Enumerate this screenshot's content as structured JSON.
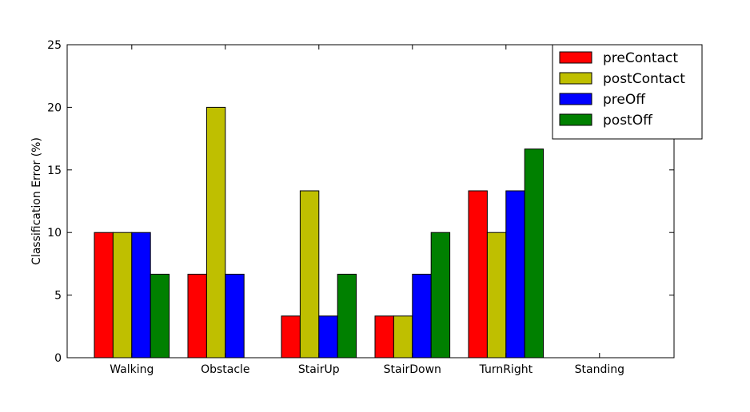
{
  "chart_data": {
    "type": "bar",
    "title": "",
    "xlabel": "",
    "ylabel": "Classification Error (%)",
    "ylim": [
      0,
      25
    ],
    "yticks": [
      "0",
      "5",
      "10",
      "15",
      "20",
      "25"
    ],
    "categories": [
      "Walking",
      "Obstacle",
      "StairUp",
      "StairDown",
      "TurnRight",
      "Standing"
    ],
    "series": [
      {
        "name": "preContact",
        "color": "#ff0000",
        "values": [
          10,
          6.67,
          3.33,
          3.33,
          13.33,
          0
        ]
      },
      {
        "name": "postContact",
        "color": "#bfbf00",
        "values": [
          10,
          20,
          13.33,
          3.33,
          10,
          0
        ]
      },
      {
        "name": "preOff",
        "color": "#0000ff",
        "values": [
          10,
          6.67,
          3.33,
          6.67,
          13.33,
          0
        ]
      },
      {
        "name": "postOff",
        "color": "#008000",
        "values": [
          6.67,
          0,
          6.67,
          10,
          16.67,
          0
        ]
      }
    ],
    "grid": false,
    "legend_position": "top-right"
  }
}
